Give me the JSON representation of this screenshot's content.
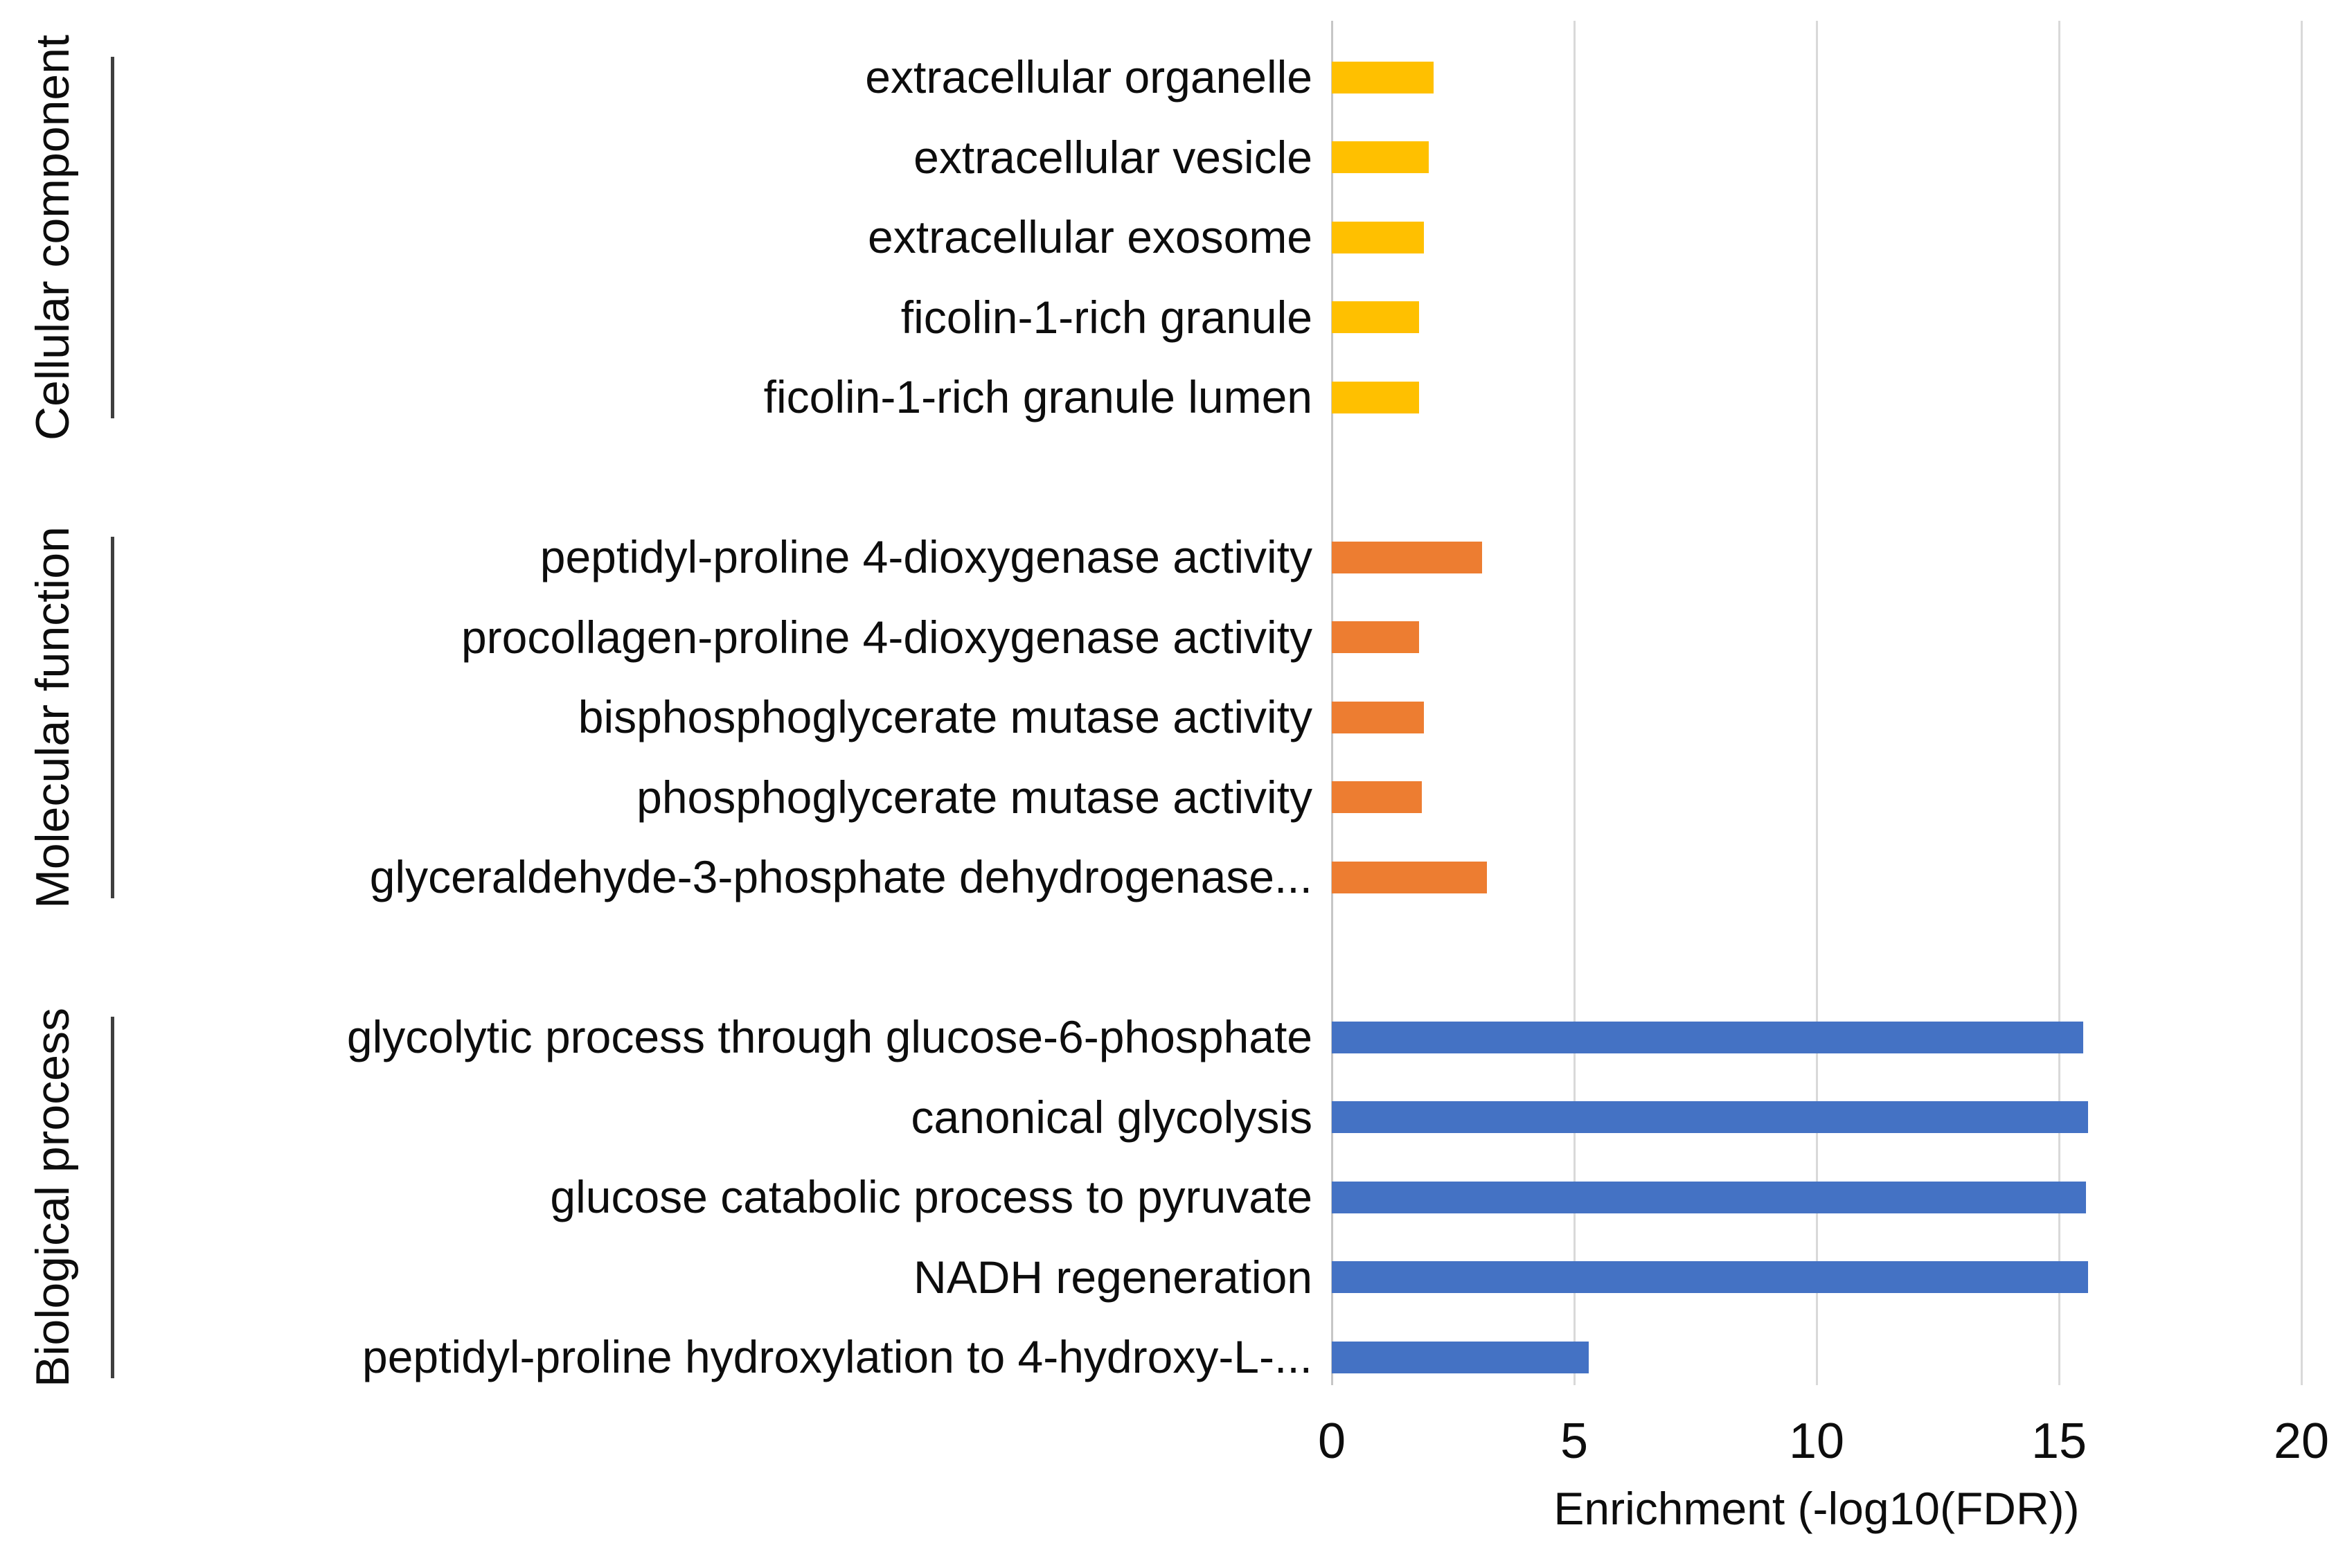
{
  "chart_data": {
    "type": "bar",
    "orientation": "horizontal",
    "xlabel": "Enrichment (-log10(FDR))",
    "xlim": [
      0,
      20
    ],
    "x_ticks": [
      "0",
      "5",
      "10",
      "15",
      "20"
    ],
    "legend": "none",
    "grid": "vertical gridlines at 5-unit intervals",
    "groups": [
      {
        "name": "Cellular component",
        "color": "#FFC000",
        "items": [
          {
            "label": "extracellular organelle",
            "value": 2.1
          },
          {
            "label": "extracellular vesicle",
            "value": 2.0
          },
          {
            "label": "extracellular exosome",
            "value": 1.9
          },
          {
            "label": "ficolin-1-rich granule",
            "value": 1.8
          },
          {
            "label": "ficolin-1-rich granule lumen",
            "value": 1.8
          }
        ]
      },
      {
        "name": "Molecular function",
        "color": "#ED7D31",
        "items": [
          {
            "label": "peptidyl-proline 4-dioxygenase activity",
            "value": 3.1
          },
          {
            "label": "procollagen-proline 4-dioxygenase activity",
            "value": 1.8
          },
          {
            "label": "bisphosphoglycerate mutase activity",
            "value": 1.9
          },
          {
            "label": "phosphoglycerate mutase activity",
            "value": 1.85
          },
          {
            "label": "glyceraldehyde-3-phosphate dehydrogenase...",
            "value": 3.2
          }
        ]
      },
      {
        "name": "Biological process",
        "color": "#4472C4",
        "items": [
          {
            "label": "glycolytic process through glucose-6-phosphate",
            "value": 15.5
          },
          {
            "label": "canonical glycolysis",
            "value": 15.6
          },
          {
            "label": "glucose catabolic process to pyruvate",
            "value": 15.55
          },
          {
            "label": "NADH regeneration",
            "value": 15.6
          },
          {
            "label": "peptidyl-proline hydroxylation to 4-hydroxy-L-...",
            "value": 5.3
          }
        ]
      }
    ],
    "colors": {
      "background": "#FFFFFF",
      "gridline": "#D9D9D9",
      "axis_line": "#C6C6C6",
      "text": "#0D0D0D",
      "bracket": "#3F3F3F"
    }
  }
}
